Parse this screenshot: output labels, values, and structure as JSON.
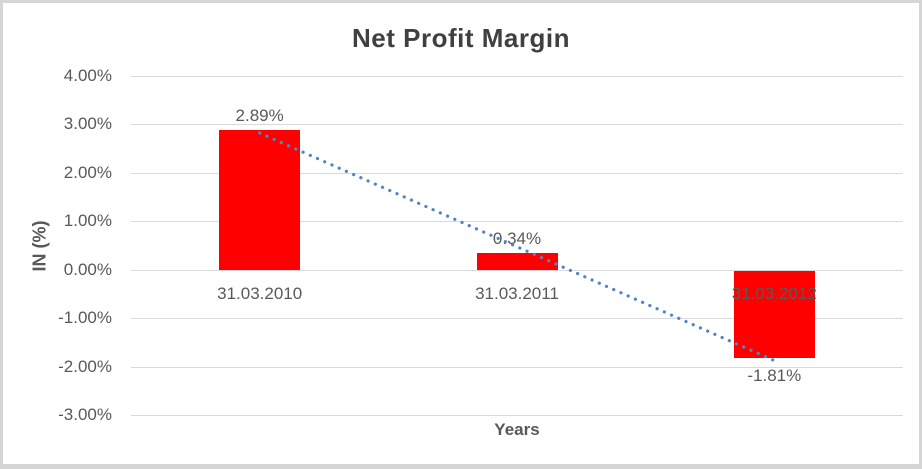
{
  "chart_data": {
    "type": "bar",
    "title": "Net Profit Margin",
    "xlabel": "Years",
    "ylabel": "IN (%)",
    "categories": [
      "31.03.2010",
      "31.03.2011",
      "31.03.2012"
    ],
    "values": [
      2.89,
      0.34,
      -1.81
    ],
    "data_labels": [
      "2.89%",
      "0.34%",
      "-1.81%"
    ],
    "ylim": [
      -3,
      4
    ],
    "ytick_step": 1,
    "ytick_labels": [
      "4.00%",
      "3.00%",
      "2.00%",
      "1.00%",
      "0.00%",
      "-1.00%",
      "-2.00%",
      "-3.00%"
    ],
    "grid": true,
    "legend": false,
    "bar_color": "#ff0000",
    "gridline_color": "#d9d9d9",
    "axis_text_color": "#595959",
    "title_color": "#404040",
    "trendline": {
      "type": "linear",
      "style": "dotted",
      "color": "#4e86c6"
    }
  }
}
